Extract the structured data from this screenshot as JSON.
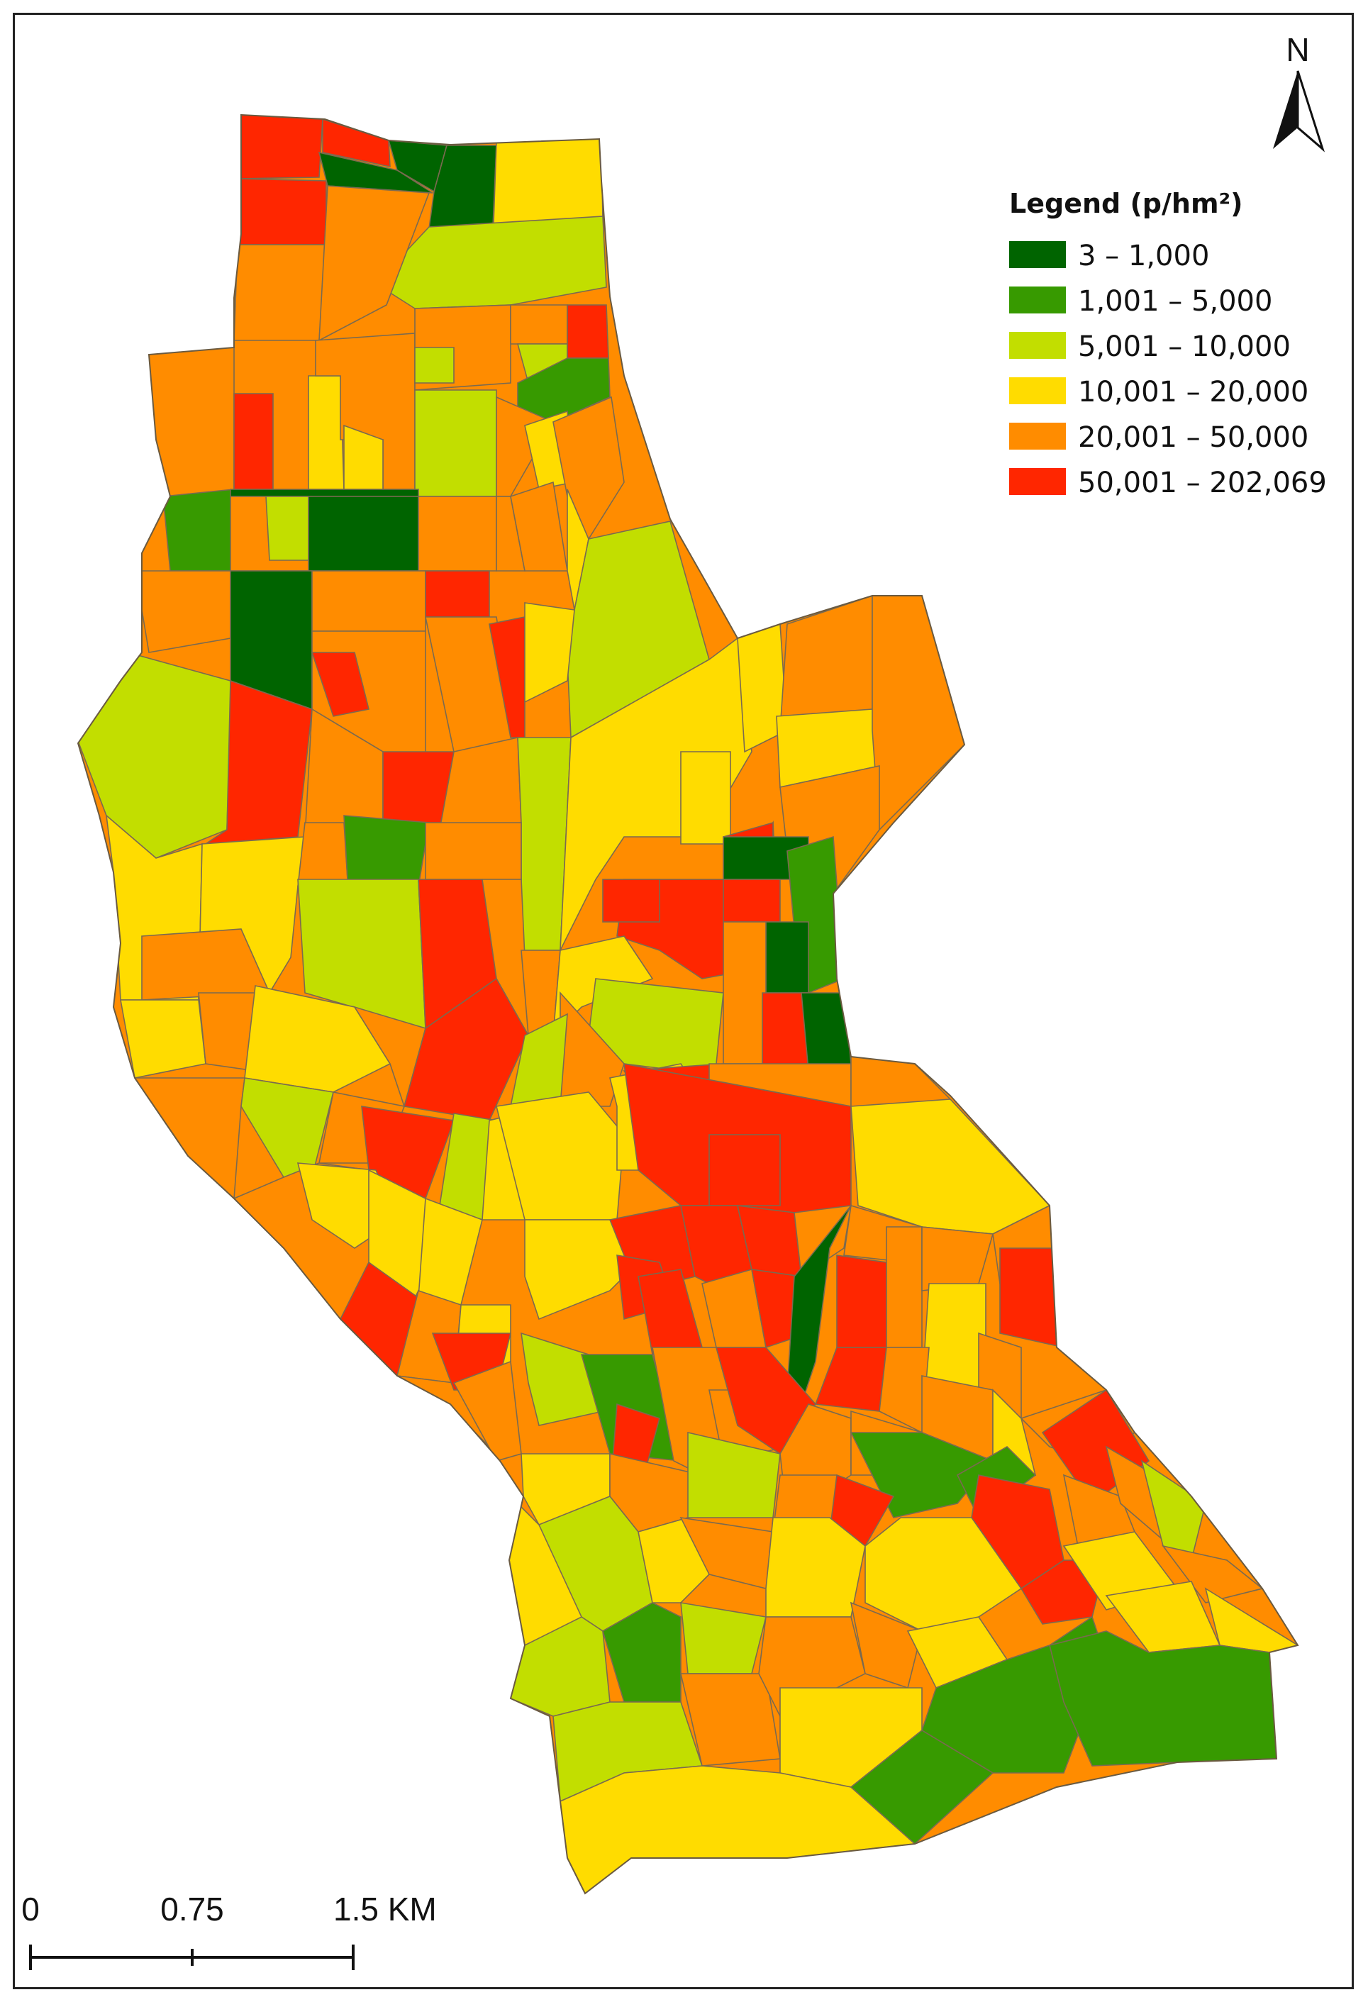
{
  "colors": {
    "c1": "#006400",
    "c2": "#379a00",
    "c3": "#c2de00",
    "c4": "#ffdc00",
    "c5": "#ff8c00",
    "c6": "#ff2600",
    "stroke": "#7a6a50",
    "ink": "#111111"
  },
  "north_arrow": {
    "label": "N"
  },
  "legend": {
    "title": "Legend (p/hm²)",
    "items": [
      {
        "label": "3 – 1,000",
        "color": "#006400"
      },
      {
        "label": "1,001 – 5,000",
        "color": "#379a00"
      },
      {
        "label": "5,001 – 10,000",
        "color": "#c2de00"
      },
      {
        "label": "10,001 – 20,000",
        "color": "#ffdc00"
      },
      {
        "label": "20,001 – 50,000",
        "color": "#ff8c00"
      },
      {
        "label": "50,001 – 202,069",
        "color": "#ff2600"
      }
    ]
  },
  "scale_bar": {
    "labels": [
      "0",
      "0.75",
      "1.5 KM"
    ]
  }
}
